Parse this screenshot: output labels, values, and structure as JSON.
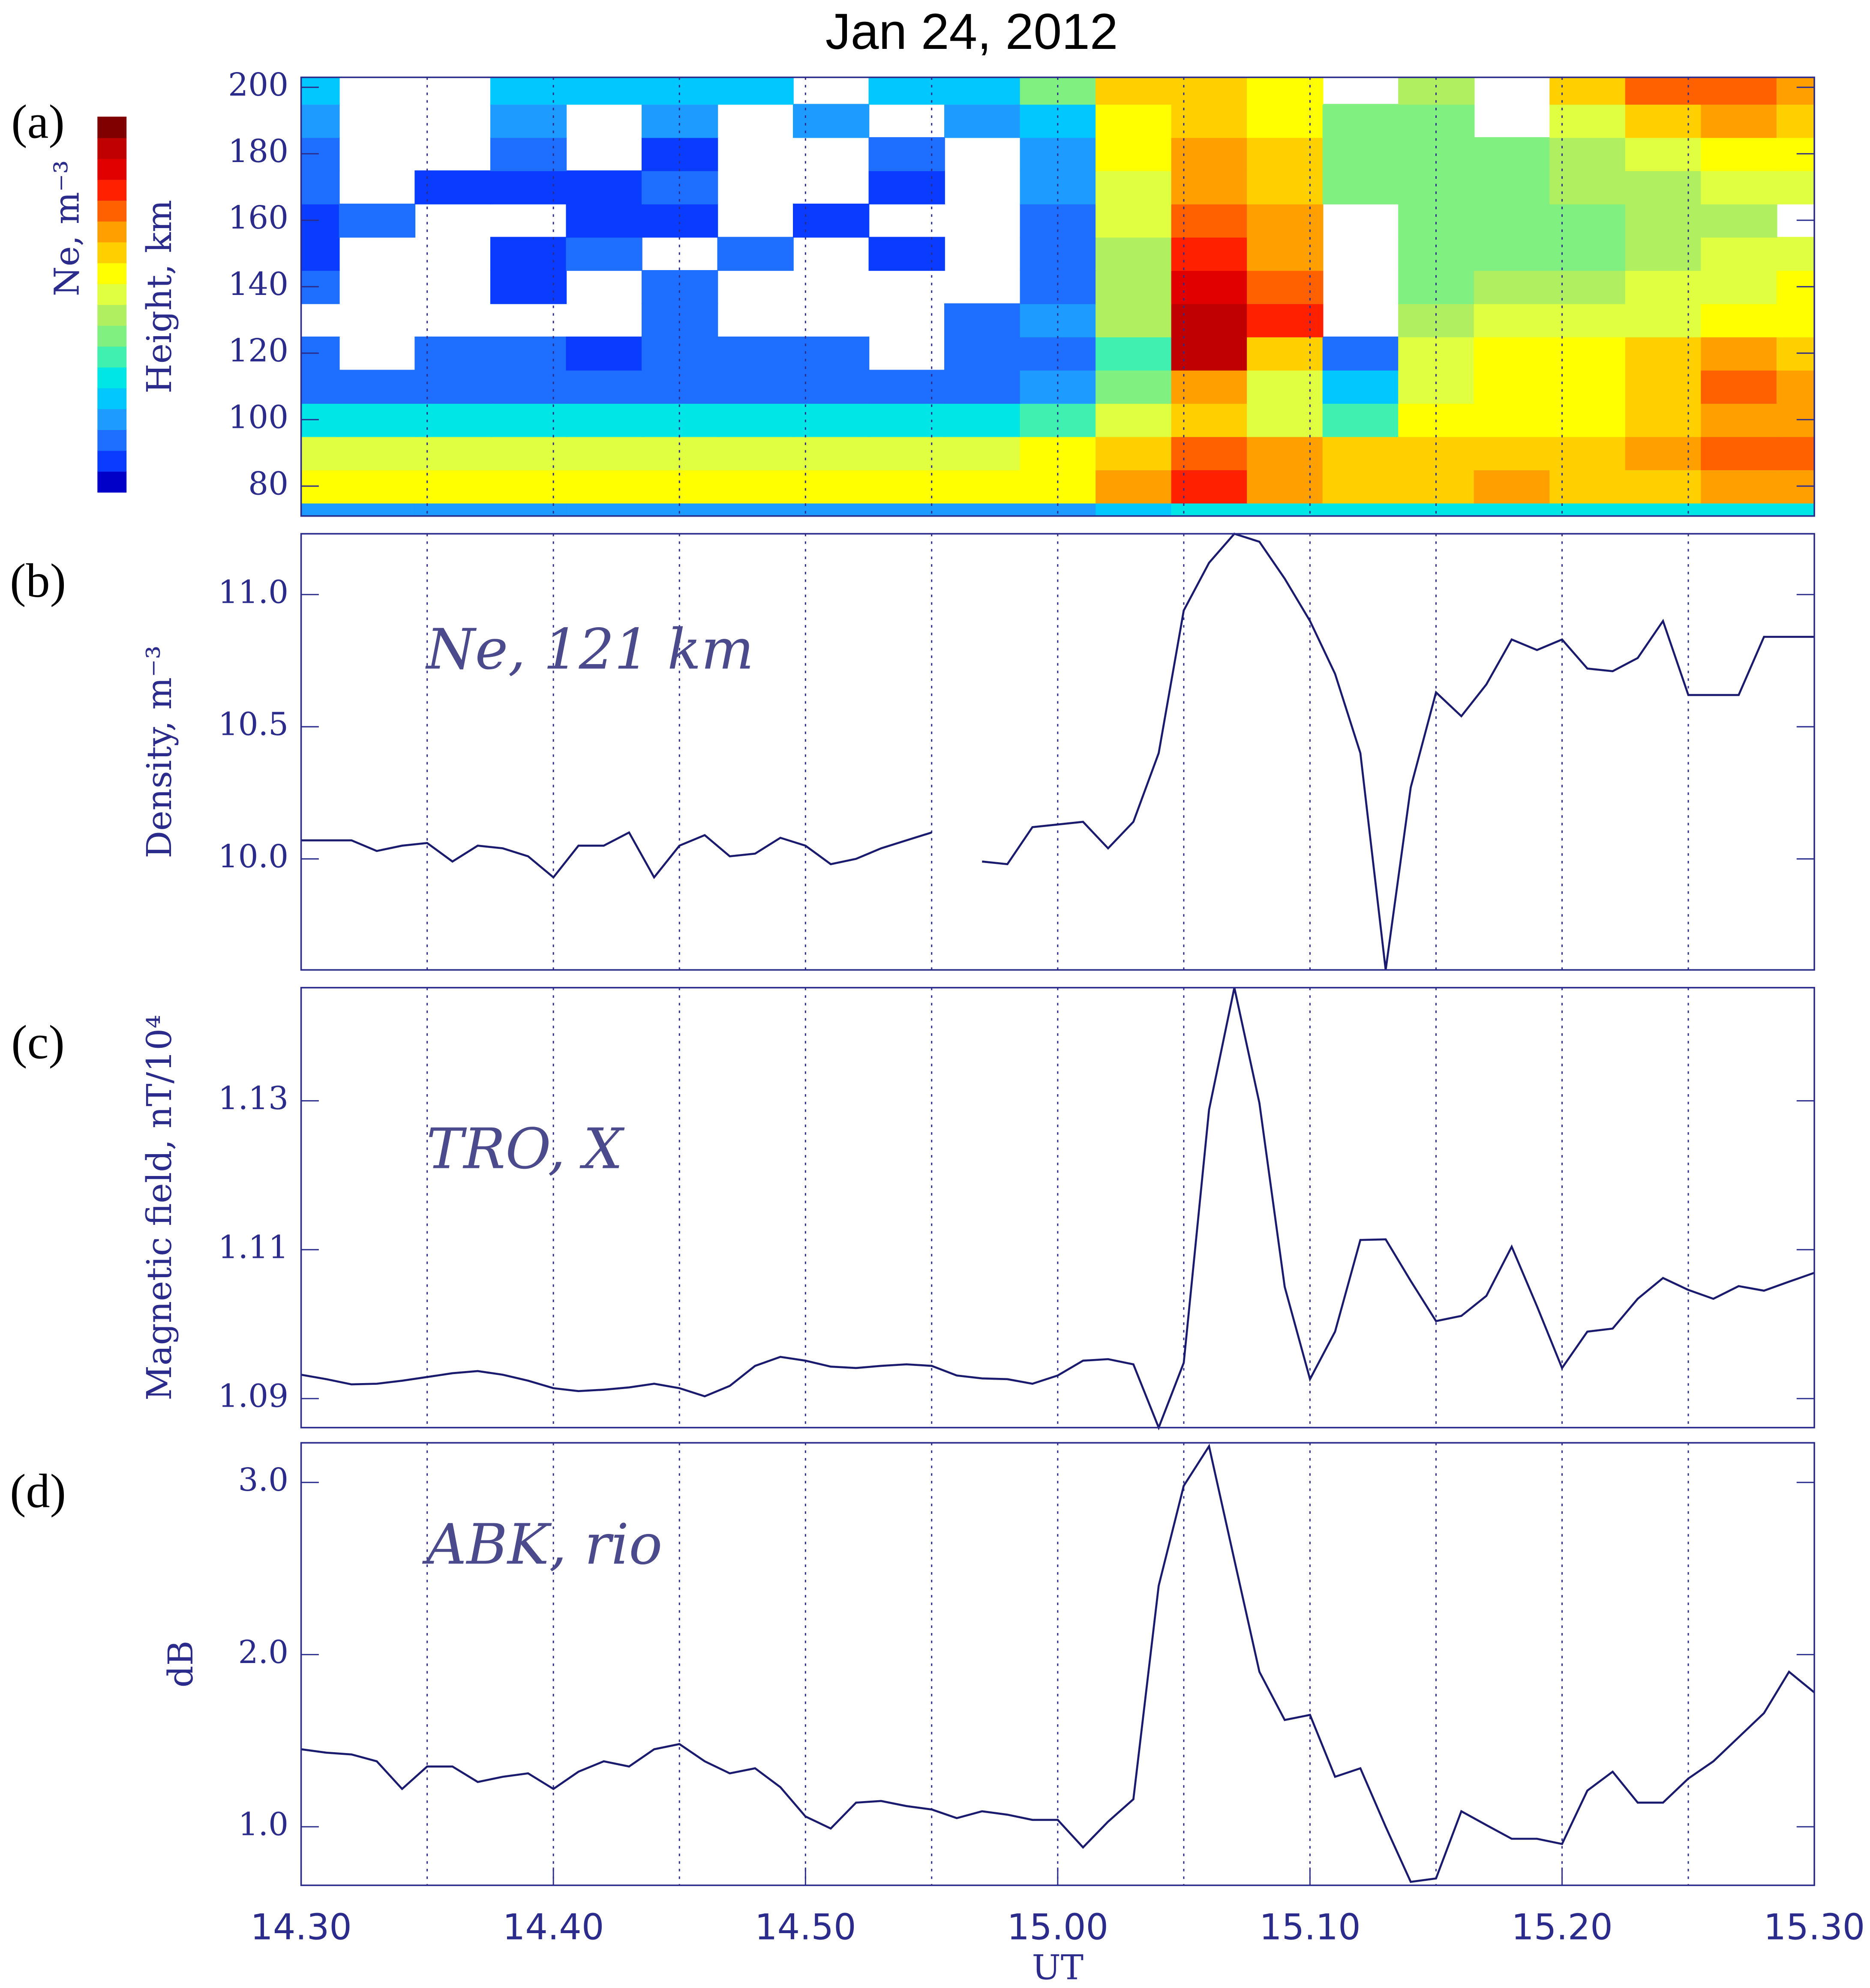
{
  "title": "Jan 24, 2012",
  "chart_data": [
    {
      "type": "contour",
      "panel_label": "(a)",
      "ylabel": "Height, km",
      "colorbar_label": "Ne, m⁻³",
      "xlim": [
        14.5,
        15.5
      ],
      "ylim": [
        71,
        203
      ],
      "yticks": [
        80,
        100,
        120,
        140,
        160,
        180,
        200
      ],
      "xgrid": [
        14.5833,
        14.6667,
        14.75,
        14.8333,
        14.9167,
        15,
        15.0833,
        15.1667,
        15.25,
        15.3333,
        15.4167
      ],
      "colors": [
        "#0000c8",
        "#0a3cff",
        "#1e6eff",
        "#1e9bff",
        "#00c8ff",
        "#00e6e6",
        "#40f0b0",
        "#80f080",
        "#b0f060",
        "#e0ff40",
        "#ffff00",
        "#ffd000",
        "#ffa000",
        "#ff6000",
        "#ff2000",
        "#e00000",
        "#c00000",
        "#800000"
      ],
      "x": [
        14.5,
        14.55,
        14.6,
        14.65,
        14.7,
        14.75,
        14.8,
        14.85,
        14.9,
        14.95,
        15,
        15.05,
        15.1,
        15.15,
        15.2,
        15.25,
        15.3,
        15.35,
        15.4,
        15.45,
        15.5
      ],
      "y": [
        70,
        80,
        90,
        100,
        110,
        120,
        130,
        140,
        150,
        160,
        170,
        180,
        190,
        200
      ],
      "z": [
        [
          3,
          3,
          3,
          3,
          3,
          3,
          3,
          3,
          3,
          3,
          3,
          4,
          5,
          5,
          5,
          5,
          5,
          5,
          5,
          5,
          5
        ],
        [
          10,
          10,
          10,
          10,
          10,
          10,
          10,
          10,
          10,
          10,
          10,
          12,
          14,
          12,
          11,
          11,
          12,
          11,
          11,
          12,
          12
        ],
        [
          9,
          9,
          9,
          9,
          9,
          9,
          9,
          9,
          9,
          9,
          10,
          11,
          13,
          12,
          11,
          11,
          11,
          11,
          12,
          13,
          13
        ],
        [
          5,
          5,
          5,
          5,
          5,
          5,
          5,
          5,
          5,
          5,
          6,
          9,
          11,
          9,
          6,
          10,
          10,
          10,
          11,
          12,
          12
        ],
        [
          2,
          2,
          2,
          2,
          2,
          2,
          2,
          2,
          2,
          2,
          3,
          7,
          12,
          9,
          4,
          9,
          10,
          10,
          11,
          13,
          12
        ],
        [
          2,
          null,
          2,
          2,
          1,
          2,
          2,
          2,
          null,
          2,
          2,
          6,
          16,
          11,
          2,
          9,
          10,
          10,
          11,
          12,
          11
        ],
        [
          null,
          null,
          null,
          null,
          null,
          2,
          null,
          null,
          null,
          2,
          3,
          8,
          16,
          14,
          null,
          8,
          9,
          9,
          9,
          10,
          10
        ],
        [
          2,
          null,
          null,
          1,
          null,
          2,
          null,
          null,
          null,
          null,
          2,
          8,
          15,
          13,
          null,
          7,
          8,
          8,
          9,
          9,
          10
        ],
        [
          1,
          null,
          null,
          1,
          2,
          null,
          2,
          null,
          1,
          null,
          2,
          8,
          14,
          12,
          null,
          7,
          7,
          7,
          8,
          9,
          9
        ],
        [
          1,
          2,
          null,
          null,
          1,
          1,
          null,
          1,
          null,
          null,
          2,
          9,
          13,
          12,
          null,
          7,
          7,
          7,
          8,
          8,
          null
        ],
        [
          2,
          null,
          1,
          1,
          1,
          2,
          null,
          null,
          1,
          null,
          3,
          9,
          12,
          11,
          7,
          7,
          7,
          8,
          8,
          9,
          9
        ],
        [
          2,
          null,
          null,
          2,
          null,
          1,
          null,
          null,
          2,
          null,
          3,
          10,
          12,
          11,
          7,
          7,
          7,
          8,
          9,
          10,
          10
        ],
        [
          3,
          null,
          null,
          3,
          null,
          3,
          null,
          3,
          null,
          3,
          4,
          10,
          11,
          10,
          7,
          7,
          null,
          9,
          11,
          12,
          11
        ],
        [
          4,
          null,
          null,
          4,
          4,
          4,
          4,
          null,
          4,
          4,
          7,
          11,
          11,
          10,
          null,
          8,
          null,
          11,
          13,
          13,
          12
        ]
      ]
    },
    {
      "type": "line",
      "panel_label": "(b)",
      "ylabel": "Density, m⁻³",
      "annotation": "Ne, 121 km",
      "color": "#1a1a6e",
      "xlim": [
        14.5,
        15.5
      ],
      "ylim": [
        9.58,
        11.23
      ],
      "yticks": [
        {
          "value": 10,
          "label": "10.0"
        },
        10.5,
        {
          "value": 11,
          "label": "11.0"
        }
      ],
      "xgrid": [
        14.5833,
        14.6667,
        14.75,
        14.8333,
        14.9167,
        15,
        15.0833,
        15.1667,
        15.25,
        15.3333,
        15.4167
      ],
      "x": [
        14.5,
        14.5167,
        14.5333,
        14.55,
        14.5667,
        14.5833,
        14.6,
        14.6167,
        14.6333,
        14.65,
        14.6667,
        14.6833,
        14.7,
        14.7167,
        14.7333,
        14.75,
        14.7667,
        14.7833,
        14.8,
        14.8167,
        14.8333,
        14.85,
        14.8667,
        14.8833,
        14.9,
        14.9167,
        14.9333,
        14.95,
        14.9667,
        14.9833,
        15,
        15.0167,
        15.0333,
        15.05,
        15.0667,
        15.0833,
        15.1,
        15.1167,
        15.1333,
        15.15,
        15.1667,
        15.1833,
        15.2,
        15.2167,
        15.2333,
        15.25,
        15.2667,
        15.2833,
        15.3,
        15.3167,
        15.3333,
        15.35,
        15.3667,
        15.3833,
        15.4,
        15.4167,
        15.4333,
        15.45,
        15.4667,
        15.4833,
        15.5
      ],
      "values": [
        10.07,
        10.07,
        10.07,
        10.03,
        10.05,
        10.06,
        9.99,
        10.05,
        10.04,
        10.01,
        9.93,
        10.05,
        10.05,
        10.1,
        9.93,
        10.05,
        10.09,
        10.01,
        10.02,
        10.08,
        10.05,
        9.98,
        10.0,
        10.04,
        10.07,
        10.1,
        null,
        9.99,
        9.98,
        10.12,
        10.13,
        10.14,
        10.04,
        10.14,
        10.4,
        10.94,
        11.12,
        11.23,
        11.2,
        11.06,
        10.9,
        10.7,
        10.4,
        9.58,
        10.27,
        10.63,
        10.54,
        10.66,
        10.83,
        10.79,
        10.83,
        10.72,
        10.71,
        10.76,
        10.9,
        10.62,
        10.62,
        10.62,
        10.84,
        10.84,
        10.84
      ]
    },
    {
      "type": "line",
      "panel_label": "(c)",
      "ylabel": "Magnetic field, nT/10⁴",
      "annotation": "TRO, X",
      "color": "#1a1a6e",
      "xlim": [
        14.5,
        15.5
      ],
      "ylim": [
        1.0861,
        1.1452
      ],
      "yticks": [
        1.09,
        1.11,
        1.13
      ],
      "xgrid": [
        14.5833,
        14.6667,
        14.75,
        14.8333,
        14.9167,
        15,
        15.0833,
        15.1667,
        15.25,
        15.3333,
        15.4167
      ],
      "x": [
        14.5,
        14.5167,
        14.5333,
        14.55,
        14.5667,
        14.5833,
        14.6,
        14.6167,
        14.6333,
        14.65,
        14.6667,
        14.6833,
        14.7,
        14.7167,
        14.7333,
        14.75,
        14.7667,
        14.7833,
        14.8,
        14.8167,
        14.8333,
        14.85,
        14.8667,
        14.8833,
        14.9,
        14.9167,
        14.9333,
        14.95,
        14.9667,
        14.9833,
        15,
        15.0167,
        15.0333,
        15.05,
        15.0667,
        15.0833,
        15.1,
        15.1167,
        15.1333,
        15.15,
        15.1667,
        15.1833,
        15.2,
        15.2167,
        15.2333,
        15.25,
        15.2667,
        15.2833,
        15.3,
        15.3167,
        15.3333,
        15.35,
        15.3667,
        15.3833,
        15.4,
        15.4167,
        15.4333,
        15.45,
        15.4667,
        15.4833,
        15.5
      ],
      "values": [
        1.0932,
        1.0926,
        1.0919,
        1.092,
        1.0924,
        1.0929,
        1.0934,
        1.0937,
        1.0932,
        1.0924,
        1.0914,
        1.091,
        1.0912,
        1.0915,
        1.092,
        1.0914,
        1.0903,
        1.0917,
        1.0944,
        1.0956,
        1.0951,
        1.0943,
        1.0941,
        1.0944,
        1.0946,
        1.0944,
        1.0931,
        1.0927,
        1.0926,
        1.092,
        1.0931,
        1.0951,
        1.0953,
        1.0946,
        1.0861,
        1.0948,
        1.1288,
        1.1452,
        1.1297,
        1.105,
        1.0926,
        1.099,
        1.1113,
        1.1114,
        1.1058,
        1.1004,
        1.1011,
        1.1038,
        1.1104,
        1.1024,
        1.0941,
        1.099,
        1.0994,
        1.1034,
        1.1062,
        1.1046,
        1.1034,
        1.1051,
        1.1045,
        1.1057,
        1.1069
      ]
    },
    {
      "type": "line",
      "panel_label": "(d)",
      "ylabel": "dB",
      "annotation": "ABK, rio",
      "xlabel": "UT",
      "color": "#1a1a6e",
      "xlim": [
        14.5,
        15.5
      ],
      "ylim": [
        0.66,
        3.23
      ],
      "yticks": [
        {
          "value": 1,
          "label": "1.0"
        },
        {
          "value": 2,
          "label": "2.0"
        },
        {
          "value": 3,
          "label": "3.0"
        }
      ],
      "xticks": [
        {
          "value": 14.5,
          "label": "14.30"
        },
        {
          "value": 14.6667,
          "label": "14.40"
        },
        {
          "value": 14.8333,
          "label": "14.50"
        },
        {
          "value": 15,
          "label": "15.00"
        },
        {
          "value": 15.1667,
          "label": "15.10"
        },
        {
          "value": 15.3333,
          "label": "15.20"
        },
        {
          "value": 15.5,
          "label": "15.30"
        }
      ],
      "xgrid": [
        14.5833,
        14.6667,
        14.75,
        14.8333,
        14.9167,
        15,
        15.0833,
        15.1667,
        15.25,
        15.3333,
        15.4167
      ],
      "x": [
        14.5,
        14.5167,
        14.5333,
        14.55,
        14.5667,
        14.5833,
        14.6,
        14.6167,
        14.6333,
        14.65,
        14.6667,
        14.6833,
        14.7,
        14.7167,
        14.7333,
        14.75,
        14.7667,
        14.7833,
        14.8,
        14.8167,
        14.8333,
        14.85,
        14.8667,
        14.8833,
        14.9,
        14.9167,
        14.9333,
        14.95,
        14.9667,
        14.9833,
        15,
        15.0167,
        15.0333,
        15.05,
        15.0667,
        15.0833,
        15.1,
        15.1167,
        15.1333,
        15.15,
        15.1667,
        15.1833,
        15.2,
        15.2167,
        15.2333,
        15.25,
        15.2667,
        15.2833,
        15.3,
        15.3167,
        15.3333,
        15.35,
        15.3667,
        15.3833,
        15.4,
        15.4167,
        15.4333,
        15.45,
        15.4667,
        15.4833,
        15.5
      ],
      "values": [
        1.45,
        1.43,
        1.42,
        1.38,
        1.22,
        1.35,
        1.35,
        1.26,
        1.29,
        1.31,
        1.22,
        1.32,
        1.38,
        1.35,
        1.45,
        1.48,
        1.38,
        1.31,
        1.34,
        1.23,
        1.06,
        0.99,
        1.14,
        1.15,
        1.12,
        1.1,
        1.05,
        1.09,
        1.07,
        1.04,
        1.04,
        0.88,
        1.03,
        1.16,
        2.4,
        2.98,
        3.21,
        2.55,
        1.9,
        1.62,
        1.65,
        1.29,
        1.34,
        1.0,
        0.68,
        0.7,
        1.09,
        1.01,
        0.93,
        0.93,
        0.9,
        1.21,
        1.32,
        1.14,
        1.14,
        1.28,
        1.38,
        1.52,
        1.66,
        1.9,
        1.78
      ]
    }
  ]
}
